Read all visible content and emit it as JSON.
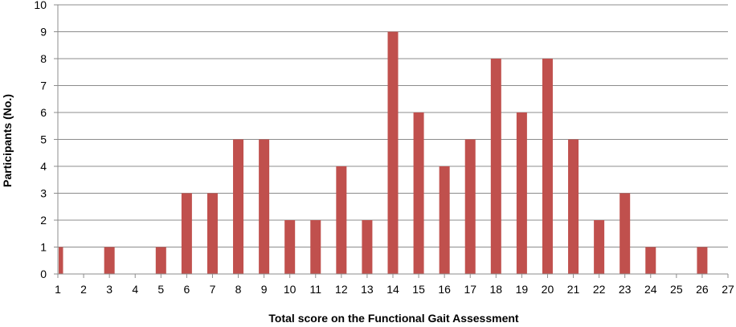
{
  "chart_data": {
    "type": "bar",
    "title": "",
    "xlabel": "Total score on the Functional Gait Assessment",
    "ylabel": "Participants (No.)",
    "categories": [
      "1",
      "2",
      "3",
      "4",
      "5",
      "6",
      "7",
      "8",
      "9",
      "10",
      "11",
      "12",
      "13",
      "14",
      "15",
      "16",
      "17",
      "18",
      "19",
      "20",
      "21",
      "22",
      "23",
      "24",
      "25",
      "26",
      "27"
    ],
    "values": [
      1,
      0,
      1,
      0,
      1,
      3,
      3,
      5,
      5,
      2,
      2,
      4,
      2,
      9,
      6,
      4,
      5,
      8,
      6,
      8,
      5,
      2,
      3,
      1,
      0,
      1,
      null
    ],
    "xlim": [
      1,
      27
    ],
    "ylim": [
      0,
      10
    ],
    "yticks": [
      "0",
      "1",
      "2",
      "3",
      "4",
      "5",
      "6",
      "7",
      "8",
      "9",
      "10"
    ],
    "grid": true,
    "legend": "none",
    "colors": {
      "bar": "#c0504d",
      "grid": "#8c8c8c",
      "axis": "#8c8c8c"
    }
  }
}
